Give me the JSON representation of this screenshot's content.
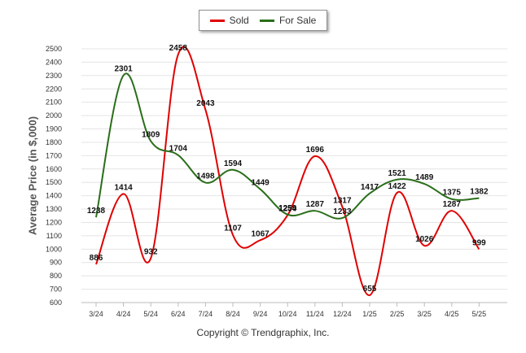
{
  "chart_data": {
    "type": "line",
    "categories": [
      "3/24",
      "4/24",
      "5/24",
      "6/24",
      "7/24",
      "8/24",
      "9/24",
      "10/24",
      "11/24",
      "12/24",
      "1/25",
      "2/25",
      "3/25",
      "4/25",
      "5/25"
    ],
    "series": [
      {
        "name": "Sold",
        "color": "#e00000",
        "values": [
          886,
          1414,
          932,
          2458,
          2043,
          1107,
          1067,
          1254,
          1696,
          1317,
          655,
          1422,
          1026,
          1287,
          999
        ]
      },
      {
        "name": "For Sale",
        "color": "#2a6e1a",
        "values": [
          1238,
          2301,
          1809,
          1704,
          1498,
          1594,
          1449,
          1259,
          1287,
          1233,
          1417,
          1521,
          1489,
          1375,
          1382
        ]
      }
    ],
    "ylabel": "Average Price (in $,000)",
    "ylim": [
      600,
      2500
    ],
    "yticks": [
      600,
      700,
      800,
      900,
      1000,
      1100,
      1200,
      1300,
      1400,
      1500,
      1600,
      1700,
      1800,
      1900,
      2000,
      2100,
      2200,
      2300,
      2400,
      2500
    ],
    "grid": true,
    "legend": "top-center"
  },
  "footer": {
    "copyright": "Copyright © Trendgraphix, Inc."
  }
}
